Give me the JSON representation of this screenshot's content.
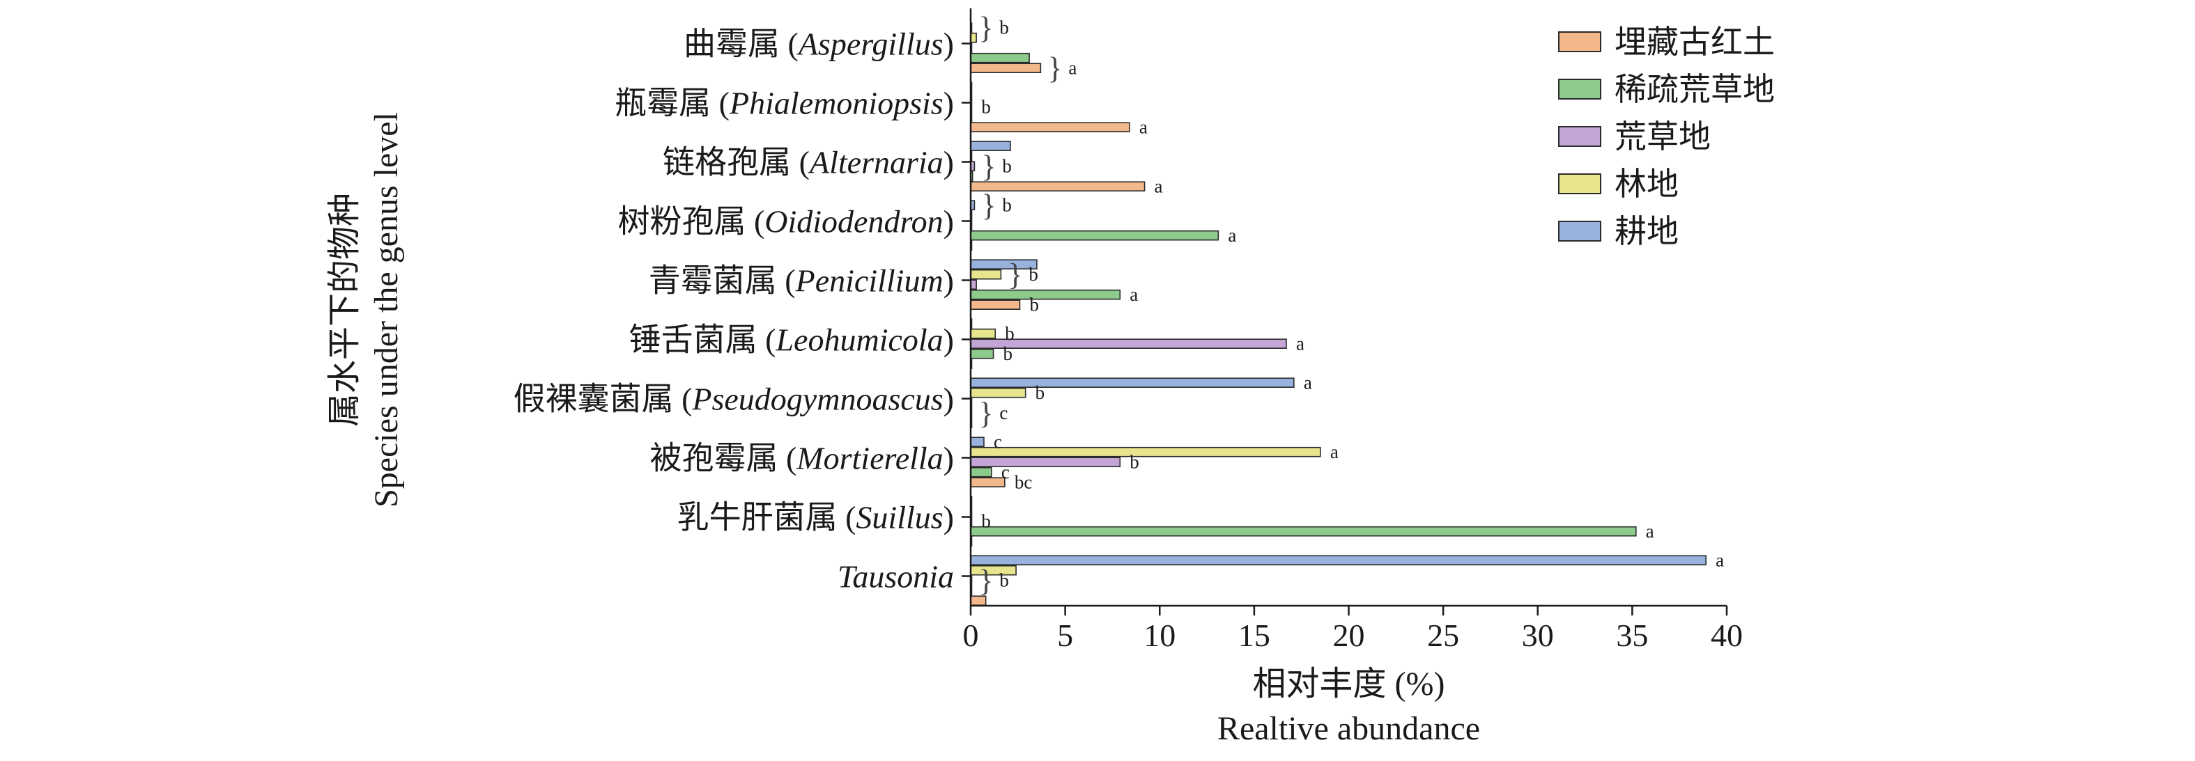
{
  "chart_data": {
    "type": "bar",
    "orientation": "horizontal",
    "ylabel_cn": "属水平下的物种",
    "ylabel_en": "Species under the genus level",
    "xlabel_cn": "相对丰度 (%)",
    "xlabel_en": "Realtive abundance",
    "xlim": [
      0,
      40
    ],
    "xticks": [
      0,
      5,
      10,
      15,
      20,
      25,
      30,
      35,
      40
    ],
    "grid": false,
    "legend_position": "top-right",
    "categories": [
      {
        "cn": "曲霉属",
        "latin": "Aspergillus"
      },
      {
        "cn": "瓶霉属",
        "latin": "Phialemoniopsis"
      },
      {
        "cn": "链格孢属",
        "latin": "Alternaria"
      },
      {
        "cn": "树粉孢属",
        "latin": "Oidiodendron"
      },
      {
        "cn": "青霉菌属",
        "latin": "Penicillium"
      },
      {
        "cn": "锤舌菌属",
        "latin": "Leohumicola"
      },
      {
        "cn": "假裸囊菌属",
        "latin": "Pseudogymnoascus"
      },
      {
        "cn": "被孢霉属",
        "latin": "Mortierella"
      },
      {
        "cn": "乳牛肝菌属",
        "latin": "Suillus"
      },
      {
        "cn": "",
        "latin": "Tausonia"
      }
    ],
    "series": [
      {
        "name": "埋藏古红土",
        "color": "#f2b88c",
        "values": [
          3.7,
          8.4,
          9.2,
          0.05,
          2.6,
          0.05,
          0.05,
          1.8,
          0.05,
          0.8
        ]
      },
      {
        "name": "稀疏荒草地",
        "color": "#8ccb8c",
        "values": [
          3.1,
          0.05,
          0.1,
          13.1,
          7.9,
          1.2,
          0.05,
          1.1,
          35.2,
          0.05
        ]
      },
      {
        "name": "荒草地",
        "color": "#c4a6d6",
        "values": [
          0.05,
          0.05,
          0.2,
          0.05,
          0.3,
          16.7,
          0.05,
          7.9,
          0.05,
          0.05
        ]
      },
      {
        "name": "林地",
        "color": "#e7e68e",
        "values": [
          0.3,
          0.05,
          0.05,
          0.05,
          1.6,
          1.3,
          2.9,
          18.5,
          0.05,
          2.4
        ]
      },
      {
        "name": "耕地",
        "color": "#98b2de",
        "values": [
          0.05,
          0.05,
          2.1,
          0.2,
          3.5,
          0.05,
          17.1,
          0.7,
          0.05,
          38.9
        ]
      }
    ],
    "significance": [
      {
        "category": "Aspergillus",
        "series": "耕地",
        "text": "b",
        "brace": true
      },
      {
        "category": "Aspergillus",
        "series": "埋藏古红土",
        "text": "a",
        "brace": true
      },
      {
        "category": "Phialemoniopsis",
        "series": "荒草地",
        "text": "b",
        "brace": false
      },
      {
        "category": "Phialemoniopsis",
        "series": "埋藏古红土",
        "text": "a",
        "brace": false
      },
      {
        "category": "Alternaria",
        "series": "荒草地",
        "text": "b",
        "brace": true
      },
      {
        "category": "Alternaria",
        "series": "埋藏古红土",
        "text": "a",
        "brace": false
      },
      {
        "category": "Oidiodendron",
        "series": "耕地",
        "text": "b",
        "brace": true
      },
      {
        "category": "Oidiodendron",
        "series": "稀疏荒草地",
        "text": "a",
        "brace": false
      },
      {
        "category": "Penicillium",
        "series": "林地",
        "text": "b",
        "brace": true
      },
      {
        "category": "Penicillium",
        "series": "稀疏荒草地",
        "text": "a",
        "brace": false
      },
      {
        "category": "Penicillium",
        "series": "埋藏古红土",
        "text": "b",
        "brace": false
      },
      {
        "category": "Leohumicola",
        "series": "林地",
        "text": "b",
        "brace": false
      },
      {
        "category": "Leohumicola",
        "series": "荒草地",
        "text": "a",
        "brace": false
      },
      {
        "category": "Leohumicola",
        "series": "稀疏荒草地",
        "text": "b",
        "brace": false
      },
      {
        "category": "Pseudogymnoascus",
        "series": "耕地",
        "text": "a",
        "brace": false
      },
      {
        "category": "Pseudogymnoascus",
        "series": "林地",
        "text": "b",
        "brace": false
      },
      {
        "category": "Pseudogymnoascus",
        "series": "稀疏荒草地",
        "text": "c",
        "brace": true
      },
      {
        "category": "Mortierella",
        "series": "耕地",
        "text": "c",
        "brace": false
      },
      {
        "category": "Mortierella",
        "series": "林地",
        "text": "a",
        "brace": false
      },
      {
        "category": "Mortierella",
        "series": "荒草地",
        "text": "b",
        "brace": false
      },
      {
        "category": "Mortierella",
        "series": "稀疏荒草地",
        "text": "c",
        "brace": false
      },
      {
        "category": "Mortierella",
        "series": "埋藏古红土",
        "text": "bc",
        "brace": false
      },
      {
        "category": "Suillus",
        "series": "荒草地",
        "text": "b",
        "brace": false
      },
      {
        "category": "Suillus",
        "series": "稀疏荒草地",
        "text": "a",
        "brace": false
      },
      {
        "category": "Tausonia",
        "series": "耕地",
        "text": "a",
        "brace": false
      },
      {
        "category": "Tausonia",
        "series": "荒草地",
        "text": "b",
        "brace": true
      }
    ]
  }
}
